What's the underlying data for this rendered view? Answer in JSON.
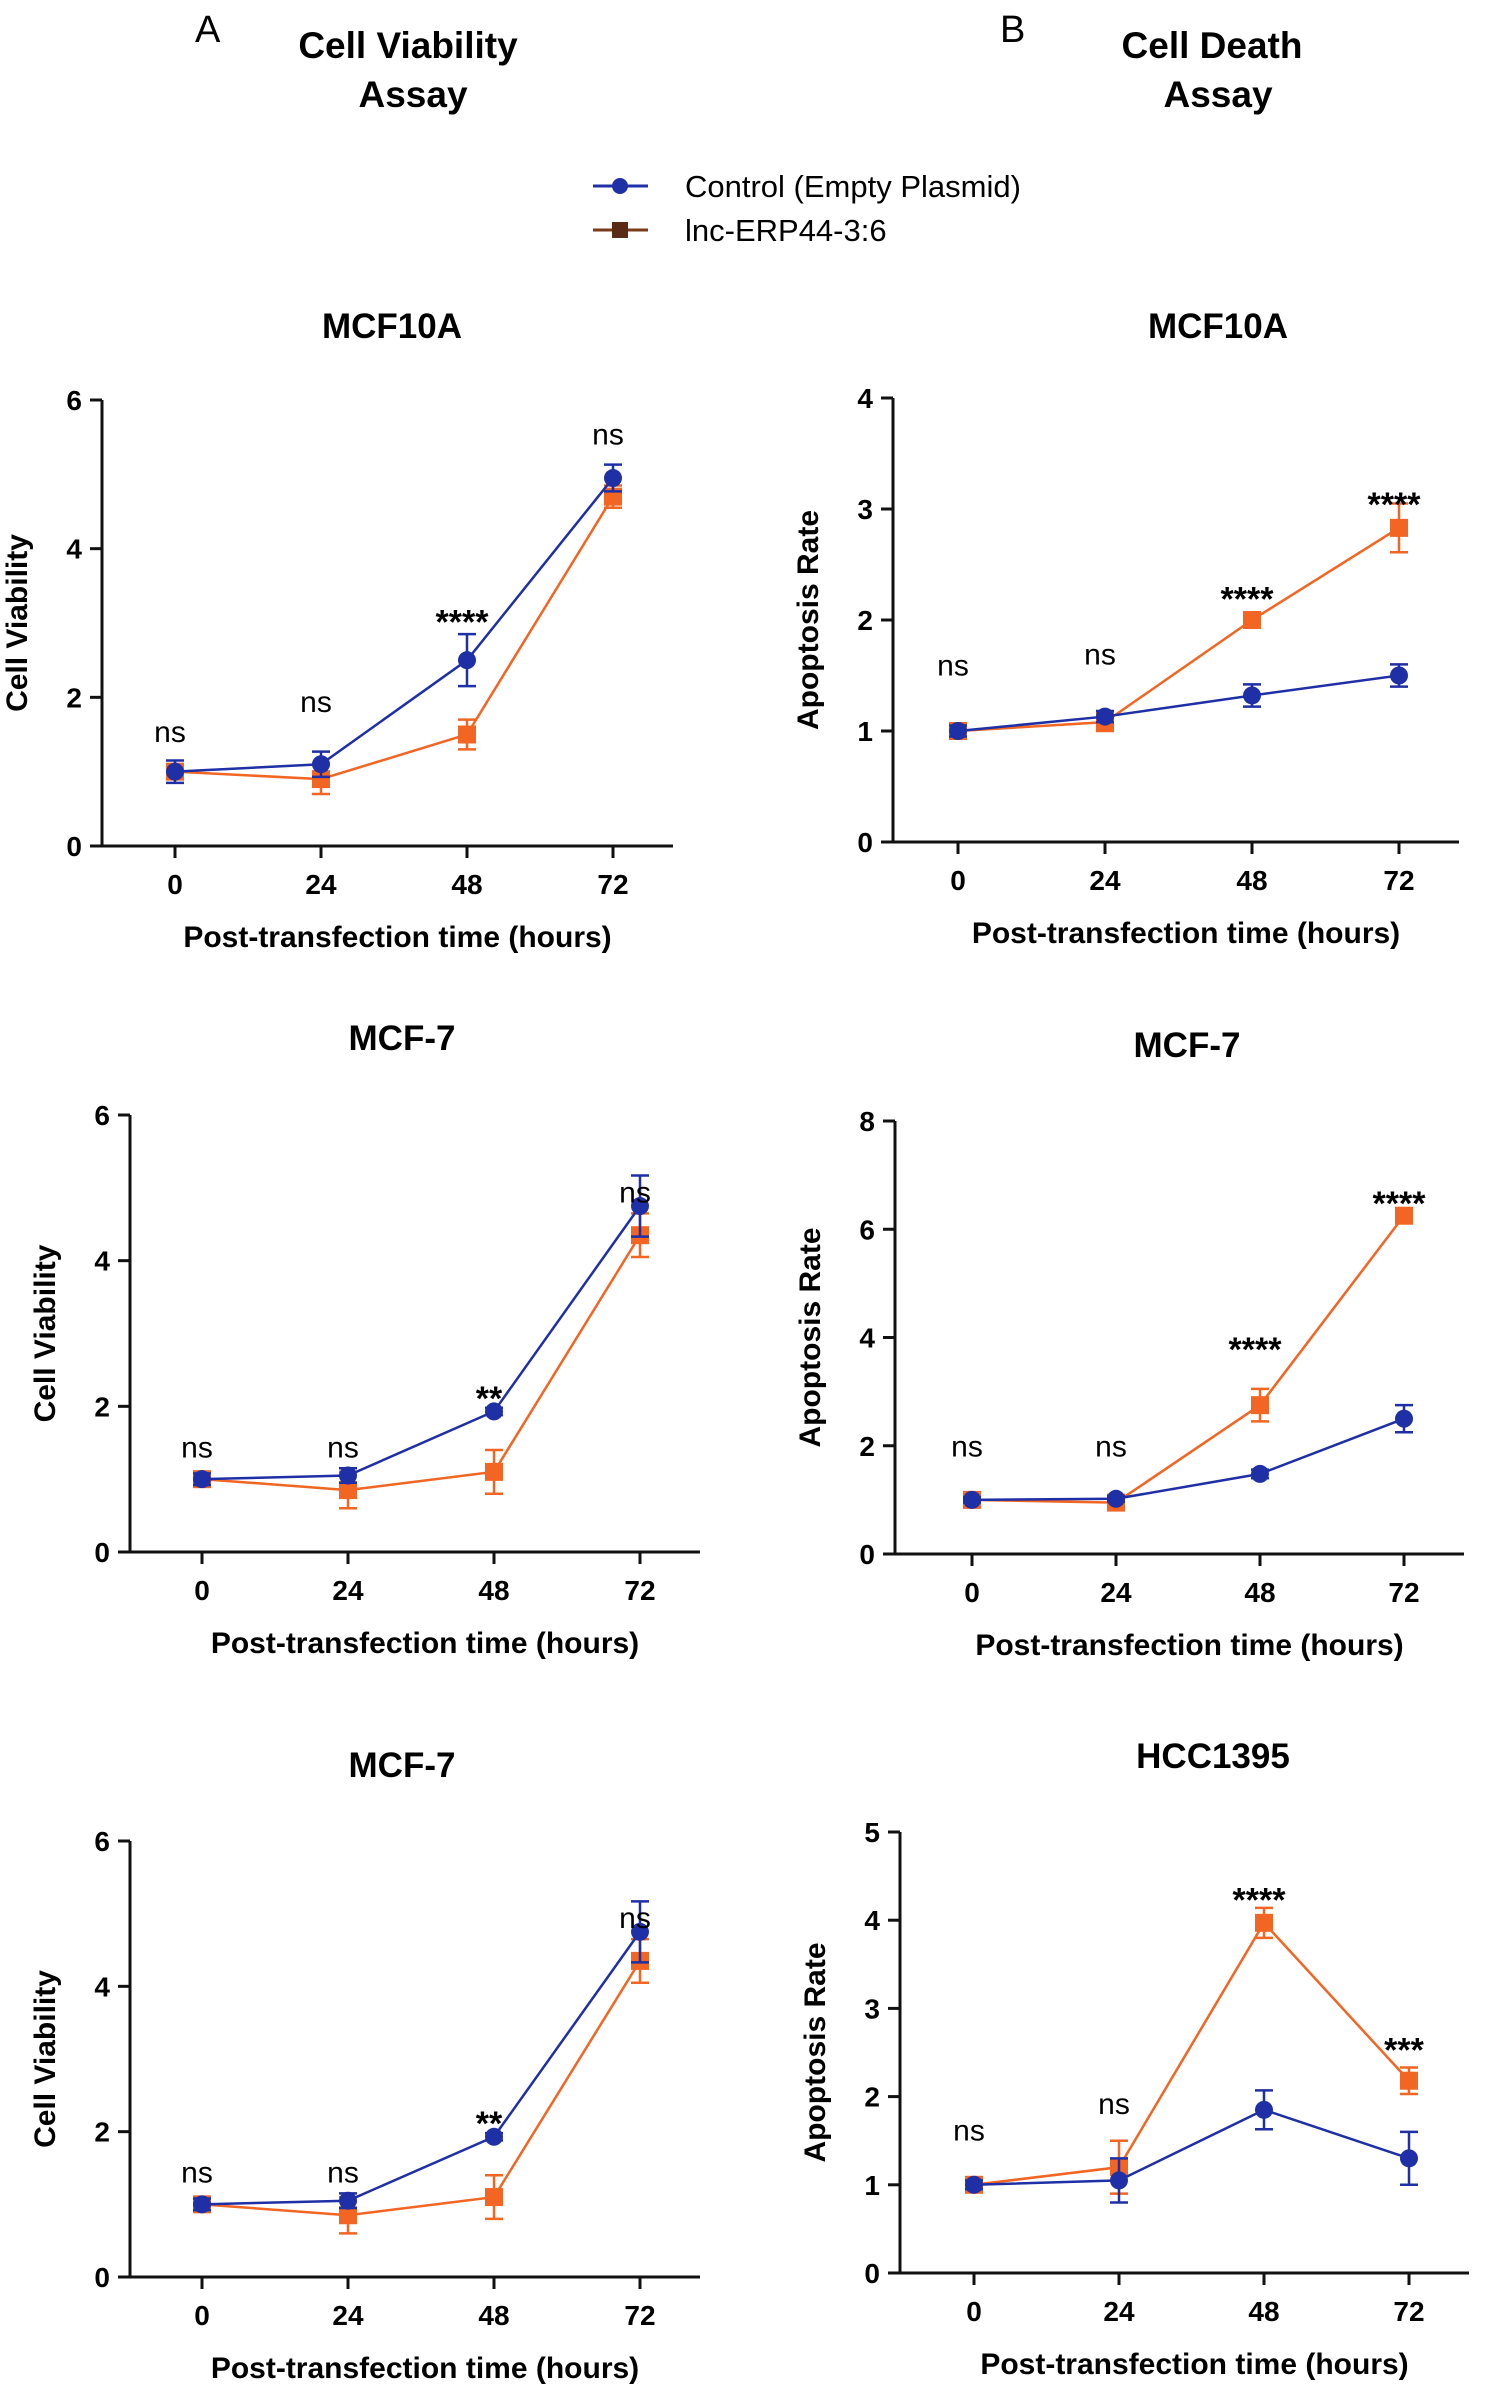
{
  "figure": {
    "panel_a": {
      "letter": "A",
      "title_line1": "Cell Viability",
      "title_line2": "Assay"
    },
    "panel_b": {
      "letter": "B",
      "title_line1": "Cell Death",
      "title_line2": "Assay"
    }
  },
  "legend": {
    "items": [
      {
        "label": "Control (Empty Plasmid)",
        "color": "#1f2fa5",
        "marker": "circle"
      },
      {
        "label": "lnc-ERP44-3:6",
        "color": "#f26522",
        "marker": "square"
      }
    ]
  },
  "chart_data": [
    {
      "type": "line",
      "title": "MCF10A",
      "xlabel": "Post-transfection time (hours)",
      "ylabel": "Cell Viability",
      "categories": [
        "0",
        "24",
        "48",
        "72"
      ],
      "ylim": [
        0,
        6
      ],
      "yticks": [
        "0",
        "2",
        "4",
        "6"
      ],
      "series": [
        {
          "name": "Control (Empty Plasmid)",
          "values": [
            1.0,
            1.1,
            2.5,
            4.95
          ],
          "errors": [
            0.15,
            0.17,
            0.35,
            0.18
          ]
        },
        {
          "name": "lnc-ERP44-3:6",
          "values": [
            1.0,
            0.9,
            1.5,
            4.7
          ],
          "errors": [
            0.1,
            0.2,
            0.2,
            0.15
          ]
        }
      ],
      "annotations": [
        "ns",
        "ns",
        "****",
        "ns"
      ],
      "annotation_levels": [
        1.4,
        1.8,
        3.1,
        5.4
      ]
    },
    {
      "type": "line",
      "title": "MCF10A",
      "xlabel": "Post-transfection time (hours)",
      "ylabel": "Apoptosis Rate",
      "categories": [
        "0",
        "24",
        "48",
        "72"
      ],
      "ylim": [
        0,
        4
      ],
      "yticks": [
        "0",
        "1",
        "2",
        "3",
        "4"
      ],
      "series": [
        {
          "name": "Control (Empty Plasmid)",
          "values": [
            1.0,
            1.13,
            1.32,
            1.5
          ],
          "errors": [
            0.05,
            0.05,
            0.1,
            0.1
          ]
        },
        {
          "name": "lnc-ERP44-3:6",
          "values": [
            1.0,
            1.08,
            2.0,
            2.83
          ],
          "errors": [
            0.05,
            0.08,
            0.05,
            0.22
          ]
        }
      ],
      "annotations": [
        "ns",
        "ns",
        "****",
        "****"
      ],
      "annotation_levels": [
        1.5,
        1.6,
        2.25,
        3.1
      ]
    },
    {
      "type": "line",
      "title": "MCF-7",
      "xlabel": "Post-transfection time (hours)",
      "ylabel": "Cell Viability",
      "categories": [
        "0",
        "24",
        "48",
        "72"
      ],
      "ylim": [
        0,
        6
      ],
      "yticks": [
        "0",
        "2",
        "4",
        "6"
      ],
      "series": [
        {
          "name": "Control (Empty Plasmid)",
          "values": [
            1.0,
            1.05,
            1.93,
            4.75
          ],
          "errors": [
            0.08,
            0.1,
            0.05,
            0.42
          ]
        },
        {
          "name": "lnc-ERP44-3:6",
          "values": [
            1.0,
            0.85,
            1.1,
            4.35
          ],
          "errors": [
            0.1,
            0.25,
            0.3,
            0.3
          ]
        }
      ],
      "annotations": [
        "ns",
        "ns",
        "**",
        "ns"
      ],
      "annotation_levels": [
        1.3,
        1.3,
        2.2,
        4.8
      ]
    },
    {
      "type": "line",
      "title": "MCF-7",
      "xlabel": "Post-transfection time (hours)",
      "ylabel": "Apoptosis Rate",
      "categories": [
        "0",
        "24",
        "48",
        "72"
      ],
      "ylim": [
        0,
        8
      ],
      "yticks": [
        "0",
        "2",
        "4",
        "6",
        "8"
      ],
      "series": [
        {
          "name": "Control (Empty Plasmid)",
          "values": [
            1.0,
            1.02,
            1.48,
            2.5
          ],
          "errors": [
            0.05,
            0.05,
            0.08,
            0.25
          ]
        },
        {
          "name": "lnc-ERP44-3:6",
          "values": [
            1.0,
            0.95,
            2.75,
            6.25
          ],
          "errors": [
            0.05,
            0.08,
            0.3,
            0.1
          ]
        }
      ],
      "annotations": [
        "ns",
        "ns",
        "****",
        "****"
      ],
      "annotation_levels": [
        1.8,
        1.8,
        3.9,
        6.6
      ]
    },
    {
      "type": "line",
      "title": "MCF-7",
      "xlabel": "Post-transfection time (hours)",
      "ylabel": "Cell Viability",
      "categories": [
        "0",
        "24",
        "48",
        "72"
      ],
      "ylim": [
        0,
        6
      ],
      "yticks": [
        "0",
        "2",
        "4",
        "6"
      ],
      "series": [
        {
          "name": "Control (Empty Plasmid)",
          "values": [
            1.0,
            1.05,
            1.93,
            4.75
          ],
          "errors": [
            0.08,
            0.1,
            0.05,
            0.42
          ]
        },
        {
          "name": "lnc-ERP44-3:6",
          "values": [
            1.0,
            0.85,
            1.1,
            4.35
          ],
          "errors": [
            0.1,
            0.25,
            0.3,
            0.3
          ]
        }
      ],
      "annotations": [
        "ns",
        "ns",
        "**",
        "ns"
      ],
      "annotation_levels": [
        1.3,
        1.3,
        2.2,
        4.8
      ]
    },
    {
      "type": "line",
      "title": "HCC1395",
      "xlabel": "Post-transfection time (hours)",
      "ylabel": "Apoptosis Rate",
      "categories": [
        "0",
        "24",
        "48",
        "72"
      ],
      "ylim": [
        0,
        5
      ],
      "yticks": [
        "0",
        "1",
        "2",
        "3",
        "4",
        "5"
      ],
      "series": [
        {
          "name": "Control (Empty Plasmid)",
          "values": [
            1.0,
            1.05,
            1.85,
            1.3
          ],
          "errors": [
            0.05,
            0.25,
            0.22,
            0.3
          ]
        },
        {
          "name": "lnc-ERP44-3:6",
          "values": [
            1.0,
            1.2,
            3.97,
            2.18
          ],
          "errors": [
            0.05,
            0.3,
            0.17,
            0.15
          ]
        }
      ],
      "annotations": [
        "ns",
        "ns",
        "****",
        "***"
      ],
      "annotation_levels": [
        1.5,
        1.8,
        4.3,
        2.6
      ]
    }
  ]
}
